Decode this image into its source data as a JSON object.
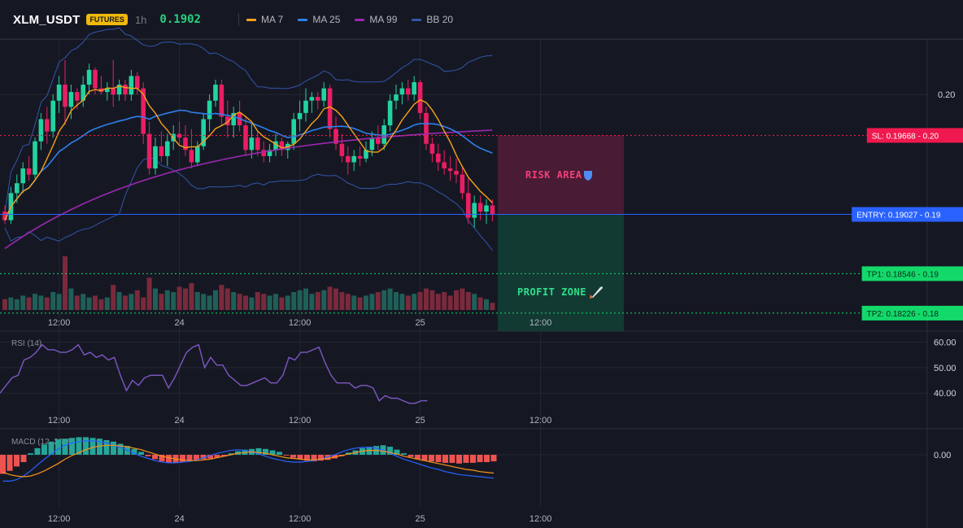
{
  "header": {
    "symbol": "XLM_USDT",
    "badge": "FUTURES",
    "timeframe": "1h",
    "last_price": "0.1902",
    "indicators": [
      {
        "label": "MA 7",
        "color": "#f7a21b"
      },
      {
        "label": "MA 25",
        "color": "#2f80ed"
      },
      {
        "label": "MA 99",
        "color": "#9c27b0"
      },
      {
        "label": "BB 20",
        "color": "#3355aa"
      }
    ]
  },
  "colors": {
    "background": "#151823",
    "grid": "#232733",
    "up": "#22d3a0",
    "down": "#e91e63",
    "ma7": "#f7a21b",
    "ma25": "#2f80ed",
    "ma99": "#9c27b0",
    "bb": "#3355aa",
    "rsi": "#7e57c2",
    "macd": "#2962ff",
    "macd_signal": "#f7931a",
    "hist_up": "#26a69a",
    "hist_down": "#ef5350",
    "sl": "#f0194f",
    "entry": "#2962ff",
    "tp": "#13d96a"
  },
  "x_axis": {
    "ticks": [
      {
        "index": 9,
        "label": "12:00"
      },
      {
        "index": 29,
        "label": "24"
      },
      {
        "index": 49,
        "label": "12:00"
      },
      {
        "index": 69,
        "label": "25"
      },
      {
        "index": 89,
        "label": "12:00"
      }
    ]
  },
  "chart_data": [
    {
      "type": "candlestick",
      "pane": "price",
      "y_ticks": [
        {
          "value": 0.2,
          "label": "0.20"
        }
      ],
      "levels": {
        "sl": {
          "label": "SL: 0.19668",
          "value": 0.19668,
          "axis": "0.20"
        },
        "entry": {
          "label": "ENTRY: 0.19027",
          "value": 0.19027,
          "axis": "0.19"
        },
        "tp1": {
          "label": "TP1: 0.18546",
          "value": 0.18546,
          "axis": "0.19"
        },
        "tp2": {
          "label": "TP2: 0.18226",
          "value": 0.18226,
          "axis": "0.18"
        }
      },
      "zones": {
        "risk": "RISK AREA",
        "profit": "PROFIT ZONE"
      },
      "ohlc": [
        [
          0.1905,
          0.191,
          0.1895,
          0.1898
        ],
        [
          0.1898,
          0.1925,
          0.1895,
          0.192
        ],
        [
          0.192,
          0.1935,
          0.1912,
          0.1928
        ],
        [
          0.1928,
          0.1945,
          0.192,
          0.194
        ],
        [
          0.194,
          0.195,
          0.193,
          0.1935
        ],
        [
          0.1935,
          0.1965,
          0.1932,
          0.1962
        ],
        [
          0.1962,
          0.1985,
          0.1955,
          0.198
        ],
        [
          0.198,
          0.199,
          0.196,
          0.197
        ],
        [
          0.197,
          0.2,
          0.1965,
          0.1995
        ],
        [
          0.1995,
          0.2015,
          0.1985,
          0.2008
        ],
        [
          0.2008,
          0.2028,
          0.1975,
          0.199
        ],
        [
          0.199,
          0.2008,
          0.198,
          0.2002
        ],
        [
          0.2002,
          0.2005,
          0.1988,
          0.1995
        ],
        [
          0.1995,
          0.2015,
          0.199,
          0.2008
        ],
        [
          0.2008,
          0.2025,
          0.2,
          0.202
        ],
        [
          0.202,
          0.2022,
          0.2,
          0.2005
        ],
        [
          0.2005,
          0.2015,
          0.2,
          0.2002
        ],
        [
          0.2002,
          0.201,
          0.1995,
          0.2005
        ],
        [
          0.2005,
          0.2028,
          0.199,
          0.2
        ],
        [
          0.2,
          0.2012,
          0.1995,
          0.2008
        ],
        [
          0.2008,
          0.2012,
          0.1995,
          0.2
        ],
        [
          0.2,
          0.202,
          0.1995,
          0.2015
        ],
        [
          0.2015,
          0.2018,
          0.2,
          0.2005
        ],
        [
          0.2005,
          0.201,
          0.196,
          0.1968
        ],
        [
          0.1968,
          0.1978,
          0.1935,
          0.194
        ],
        [
          0.194,
          0.1965,
          0.1935,
          0.1958
        ],
        [
          0.1958,
          0.197,
          0.1945,
          0.195
        ],
        [
          0.195,
          0.1968,
          0.1942,
          0.1962
        ],
        [
          0.1962,
          0.1975,
          0.1955,
          0.1968
        ],
        [
          0.1968,
          0.1978,
          0.196,
          0.1965
        ],
        [
          0.1965,
          0.1975,
          0.195,
          0.1955
        ],
        [
          0.1955,
          0.1972,
          0.194,
          0.1945
        ],
        [
          0.1945,
          0.1962,
          0.1942,
          0.1958
        ],
        [
          0.1958,
          0.1985,
          0.1955,
          0.198
        ],
        [
          0.198,
          0.2,
          0.197,
          0.1995
        ],
        [
          0.1995,
          0.2012,
          0.199,
          0.2008
        ],
        [
          0.2008,
          0.2012,
          0.1975,
          0.1982
        ],
        [
          0.1982,
          0.1995,
          0.1965,
          0.1975
        ],
        [
          0.1975,
          0.199,
          0.1965,
          0.1985
        ],
        [
          0.1985,
          0.1995,
          0.197,
          0.1975
        ],
        [
          0.1975,
          0.1982,
          0.195,
          0.1955
        ],
        [
          0.1955,
          0.1978,
          0.1948,
          0.1965
        ],
        [
          0.1965,
          0.197,
          0.195,
          0.1955
        ],
        [
          0.1955,
          0.1962,
          0.1945,
          0.195
        ],
        [
          0.195,
          0.196,
          0.1945,
          0.1955
        ],
        [
          0.1955,
          0.1968,
          0.195,
          0.1962
        ],
        [
          0.1962,
          0.1965,
          0.195,
          0.1955
        ],
        [
          0.1955,
          0.1962,
          0.1948,
          0.196
        ],
        [
          0.196,
          0.1985,
          0.1955,
          0.198
        ],
        [
          0.198,
          0.1995,
          0.197,
          0.1985
        ],
        [
          0.1985,
          0.2005,
          0.1978,
          0.1995
        ],
        [
          0.1995,
          0.2002,
          0.1985,
          0.1998
        ],
        [
          0.1998,
          0.2002,
          0.1988,
          0.1995
        ],
        [
          0.1995,
          0.201,
          0.199,
          0.2005
        ],
        [
          0.2005,
          0.2008,
          0.1965,
          0.1972
        ],
        [
          0.1972,
          0.1982,
          0.1955,
          0.196
        ],
        [
          0.196,
          0.1968,
          0.1945,
          0.195
        ],
        [
          0.195,
          0.1958,
          0.1935,
          0.1945
        ],
        [
          0.1945,
          0.1955,
          0.1938,
          0.195
        ],
        [
          0.195,
          0.1958,
          0.1942,
          0.1948
        ],
        [
          0.1948,
          0.1962,
          0.1945,
          0.1955
        ],
        [
          0.1955,
          0.197,
          0.195,
          0.1965
        ],
        [
          0.1965,
          0.1975,
          0.1955,
          0.196
        ],
        [
          0.196,
          0.198,
          0.1955,
          0.1975
        ],
        [
          0.1975,
          0.2,
          0.197,
          0.1995
        ],
        [
          0.1995,
          0.2008,
          0.1988,
          0.2
        ],
        [
          0.2,
          0.201,
          0.1992,
          0.2005
        ],
        [
          0.2005,
          0.2012,
          0.1995,
          0.2
        ],
        [
          0.2,
          0.2015,
          0.1995,
          0.201
        ],
        [
          0.201,
          0.2012,
          0.198,
          0.1985
        ],
        [
          0.1985,
          0.199,
          0.1955,
          0.196
        ],
        [
          0.196,
          0.1965,
          0.1945,
          0.1952
        ],
        [
          0.1952,
          0.196,
          0.1938,
          0.1945
        ],
        [
          0.1945,
          0.1955,
          0.1935,
          0.194
        ],
        [
          0.194,
          0.195,
          0.193,
          0.1938
        ],
        [
          0.1938,
          0.1948,
          0.1928,
          0.1935
        ],
        [
          0.1935,
          0.1942,
          0.1915,
          0.192
        ],
        [
          0.192,
          0.1932,
          0.1895,
          0.19
        ],
        [
          0.19,
          0.1918,
          0.1892,
          0.1912
        ],
        [
          0.1912,
          0.1918,
          0.1898,
          0.1905
        ],
        [
          0.1905,
          0.1915,
          0.1895,
          0.191
        ],
        [
          0.191,
          0.1915,
          0.1897,
          0.1903
        ]
      ],
      "volume": [
        6,
        7,
        6,
        8,
        7,
        9,
        8,
        7,
        10,
        9,
        30,
        12,
        8,
        9,
        7,
        8,
        6,
        7,
        14,
        10,
        8,
        9,
        11,
        7,
        18,
        12,
        9,
        11,
        10,
        13,
        12,
        15,
        10,
        9,
        8,
        11,
        14,
        12,
        10,
        9,
        8,
        7,
        10,
        9,
        8,
        9,
        7,
        8,
        10,
        11,
        12,
        9,
        10,
        11,
        13,
        12,
        10,
        9,
        8,
        7,
        8,
        9,
        10,
        11,
        12,
        10,
        9,
        8,
        9,
        10,
        12,
        11,
        9,
        10,
        8,
        11,
        12,
        10,
        9,
        7,
        6,
        4
      ]
    },
    {
      "type": "line",
      "pane": "rsi",
      "name": "RSI (14)",
      "y_ticks": [
        {
          "value": 60,
          "label": "60.00"
        },
        {
          "value": 50,
          "label": "50.00"
        },
        {
          "value": 40,
          "label": "40.00"
        }
      ],
      "ylim": [
        34,
        64
      ],
      "values": [
        40,
        43,
        46,
        47,
        53,
        54,
        56,
        59,
        57,
        57,
        56,
        56,
        57,
        59,
        55,
        56,
        54,
        55,
        53,
        54,
        47,
        41,
        45,
        43,
        46,
        47,
        47,
        47,
        42,
        46,
        51,
        56,
        58,
        59,
        50,
        54,
        51,
        51,
        47,
        45,
        43,
        43,
        44,
        45,
        46,
        44,
        44,
        47,
        54,
        53,
        56,
        56,
        57,
        58,
        52,
        47,
        44,
        44,
        44,
        42,
        43,
        43,
        42,
        37,
        39,
        38,
        38,
        37,
        36,
        36,
        37,
        37
      ],
      "rsi_x_start": 0
    },
    {
      "type": "bar",
      "pane": "macd",
      "name": "MACD (12, 26, 9)",
      "y_ticks": [
        {
          "value": 0,
          "label": "0.00"
        }
      ],
      "histogram": [
        -2.6,
        -2.2,
        -1.6,
        -1.0,
        0.2,
        0.9,
        1.4,
        1.8,
        2.1,
        2.2,
        2.3,
        2.4,
        2.4,
        2.3,
        2.2,
        2.0,
        1.8,
        1.5,
        1.2,
        0.8,
        0.4,
        -0.2,
        -0.6,
        -0.9,
        -1.1,
        -1.1,
        -1.0,
        -0.8,
        -0.7,
        -0.6,
        -0.5,
        -0.4,
        -0.2,
        0.2,
        0.5,
        0.7,
        0.8,
        0.9,
        0.8,
        0.6,
        0.4,
        -0.1,
        -0.4,
        -0.6,
        -0.8,
        -0.9,
        -0.8,
        -0.7,
        -0.5,
        -0.2,
        0.3,
        0.6,
        0.9,
        1.1,
        1.2,
        1.3,
        1.1,
        0.7,
        0.2,
        -0.3,
        -0.6,
        -0.8,
        -0.9,
        -1.0,
        -1.1,
        -1.1,
        -1.2,
        -1.1,
        -1.1,
        -1.0,
        -1.0,
        -0.9
      ],
      "macd_line": [
        -3.6,
        -3.6,
        -3.4,
        -2.9,
        -2.2,
        -1.4,
        -0.6,
        0.1,
        0.8,
        1.3,
        1.6,
        1.8,
        1.9,
        1.9,
        1.8,
        1.6,
        1.3,
        1.0,
        0.6,
        0.2,
        -0.2,
        -0.5,
        -0.8,
        -1.0,
        -1.1,
        -1.1,
        -1.0,
        -0.9,
        -0.7,
        -0.4,
        -0.1,
        0.2,
        0.4,
        0.6,
        0.7,
        0.6,
        0.4,
        0.1,
        -0.2,
        -0.5,
        -0.7,
        -0.9,
        -1.0,
        -1.0,
        -0.9,
        -0.8,
        -0.6,
        -0.3,
        0.0,
        0.4,
        0.7,
        0.9,
        1.0,
        1.0,
        0.9,
        0.6,
        0.2,
        -0.2,
        -0.6,
        -0.9,
        -1.2,
        -1.5,
        -1.8,
        -2.0,
        -2.3,
        -2.5,
        -2.7,
        -2.8,
        -2.9,
        -3.0,
        -3.1,
        -3.2
      ],
      "signal_line": [
        -2.4,
        -2.7,
        -2.9,
        -3.0,
        -2.9,
        -2.6,
        -2.2,
        -1.7,
        -1.2,
        -0.6,
        -0.1,
        0.3,
        0.7,
        1.0,
        1.2,
        1.3,
        1.3,
        1.2,
        1.1,
        0.9,
        0.7,
        0.4,
        0.1,
        -0.2,
        -0.4,
        -0.6,
        -0.7,
        -0.8,
        -0.8,
        -0.7,
        -0.6,
        -0.4,
        -0.2,
        0.0,
        0.2,
        0.3,
        0.4,
        0.3,
        0.2,
        0.0,
        -0.2,
        -0.4,
        -0.5,
        -0.6,
        -0.7,
        -0.7,
        -0.6,
        -0.5,
        -0.3,
        -0.1,
        0.1,
        0.3,
        0.5,
        0.6,
        0.6,
        0.5,
        0.3,
        0.1,
        -0.2,
        -0.4,
        -0.6,
        -0.8,
        -1.0,
        -1.2,
        -1.4,
        -1.6,
        -1.8,
        -2.0,
        -2.1,
        -2.3,
        -2.4,
        -2.5
      ]
    }
  ]
}
